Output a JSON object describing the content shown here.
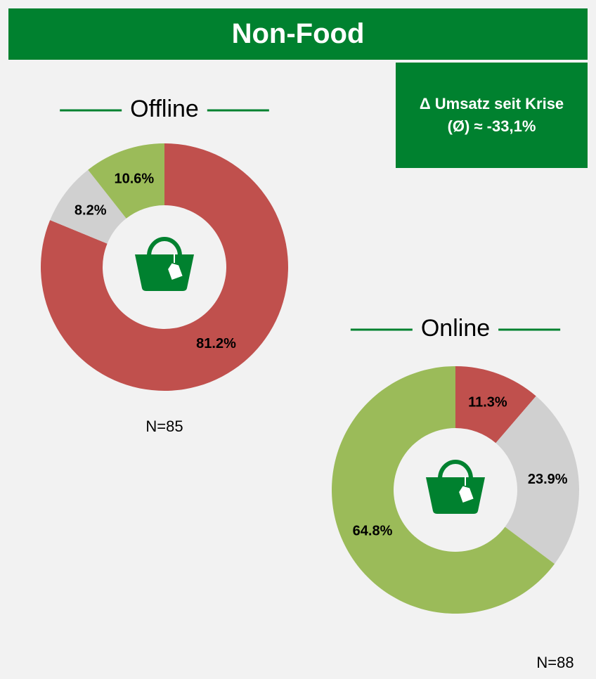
{
  "title": "Non-Food",
  "annotation": "Δ Umsatz seit Krise (Ø) ≈ -33,1%",
  "chart_data": [
    {
      "type": "pie",
      "donut": true,
      "title": "Offline",
      "note": "N=85",
      "values": [
        81.2,
        8.2,
        10.6
      ],
      "value_labels": [
        "81.2%",
        "8.2%",
        "10.6%"
      ],
      "colors": [
        "#c0504d",
        "#d0d0d0",
        "#9bbb59"
      ]
    },
    {
      "type": "pie",
      "donut": true,
      "title": "Online",
      "note": "N=88",
      "values": [
        11.3,
        23.9,
        64.8
      ],
      "value_labels": [
        "11.3%",
        "23.9%",
        "64.8%"
      ],
      "colors": [
        "#c0504d",
        "#d0d0d0",
        "#9bbb59"
      ]
    }
  ]
}
